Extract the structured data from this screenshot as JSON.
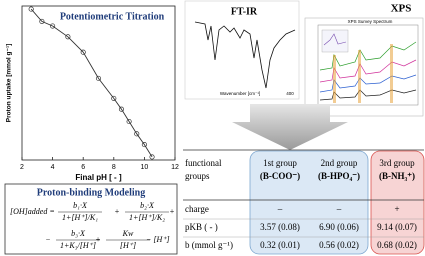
{
  "titration": {
    "type": "line",
    "title": "Potentiometric Titration",
    "x_label": "Final pH [ - ]",
    "y_label": "Proton uptake [mmol g⁻¹]",
    "x": [
      2.6,
      3.3,
      4,
      5,
      6,
      7,
      8,
      8.5,
      9,
      9.5,
      10,
      10.5
    ],
    "values": [
      0.98,
      0.9,
      0.87,
      0.8,
      0.7,
      0.53,
      0.4,
      0.33,
      0.25,
      0.17,
      0.1,
      0.02
    ],
    "xlim": [
      2,
      12
    ],
    "xticks": [
      2,
      4,
      6,
      8,
      10,
      12
    ],
    "ylim": [
      0,
      1
    ],
    "color": "#333333"
  },
  "ftir": {
    "title": "FT-IR",
    "x_label": "Wavenumber [cm⁻¹]",
    "tick": "400"
  },
  "xps": {
    "title": "XPS",
    "subtitle": "XPS Survey Spectrum"
  },
  "modeling": {
    "title": "Proton-binding Modeling",
    "lhs": "[OH]added =",
    "terms": [
      {
        "num": "b₁·X",
        "den": "1+[H⁺]/K₁"
      },
      {
        "sign": "+",
        "num": "b₂·X",
        "den": "1+[H⁺]/K₂"
      },
      {
        "sign": "+"
      },
      {
        "sign": "−",
        "num": "b₃·X",
        "den": "1+K₃/[H⁺]"
      },
      {
        "sign": "+",
        "num": "Kw",
        "den": "[H⁺]"
      }
    ],
    "tail": "− [H⁺]"
  },
  "table": {
    "header": [
      [
        "functional",
        "groups"
      ],
      [
        "1st group",
        "(B-COO⁻)"
      ],
      [
        "2nd group",
        "(B-HPO₄⁻)"
      ],
      [
        "3rd group",
        "(B-NH₃⁺)"
      ]
    ],
    "rows": [
      [
        "charge",
        "–",
        "–",
        "+"
      ],
      [
        "pKB ( - )",
        "3.57 (0.08)",
        "6.90 (0.06)",
        "9.14 (0.07)"
      ],
      [
        "b (mmol g⁻¹)",
        "0.32 (0.01)",
        "0.56 (0.02)",
        "0.68 (0.02)"
      ]
    ]
  }
}
